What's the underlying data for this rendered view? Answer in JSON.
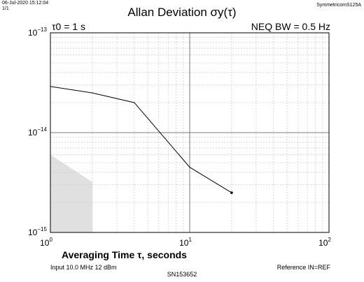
{
  "header": {
    "date": "06-Jul-2020 15:12:04",
    "count": "1/1",
    "instrument": "SymmetricomS125A"
  },
  "title": "Allan Deviation σy(τ)",
  "tau0": "τ0 = 1 s",
  "neq_bw": "NEQ BW = 0.5 Hz",
  "footer": {
    "input": "Input 10.0 MHz 12 dBm",
    "reference": "Reference IN=REF",
    "serial": "SN153652"
  },
  "chart_data": {
    "type": "line",
    "xscale": "log",
    "yscale": "log",
    "xlim": [
      1,
      100
    ],
    "ylim": [
      1e-15,
      1e-13
    ],
    "xlabel": "Averaging Time τ, seconds",
    "x_ticks": [
      {
        "value": 1,
        "base": "10",
        "exp": "0"
      },
      {
        "value": 10,
        "base": "10",
        "exp": "1"
      },
      {
        "value": 100,
        "base": "10",
        "exp": "2"
      }
    ],
    "y_ticks": [
      {
        "value": 1e-15,
        "base": "10",
        "exp": "−15"
      },
      {
        "value": 1e-14,
        "base": "10",
        "exp": "−14"
      },
      {
        "value": 1e-13,
        "base": "10",
        "exp": "−13"
      }
    ],
    "grid": true,
    "series": [
      {
        "points": [
          [
            1,
            2.9e-14
          ],
          [
            2,
            2.5e-14
          ],
          [
            4,
            2e-14
          ],
          [
            10,
            4.5e-15
          ],
          [
            20,
            2.5e-15
          ]
        ],
        "color": "#000000",
        "end_marker": true
      }
    ],
    "noise_floor": {
      "points": [
        [
          1,
          6e-15
        ],
        [
          2,
          3.2e-15
        ],
        [
          2,
          1e-15
        ],
        [
          1,
          1e-15
        ]
      ],
      "color": "#e0e0e0"
    }
  }
}
